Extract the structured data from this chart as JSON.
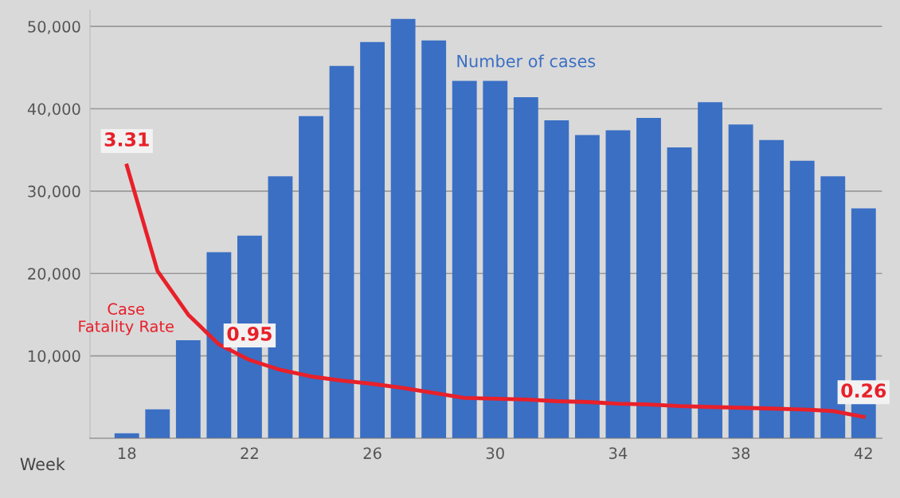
{
  "chart_data": {
    "type": "bar",
    "xlabel": "Week",
    "x": [
      18,
      19,
      20,
      21,
      22,
      23,
      24,
      25,
      26,
      27,
      28,
      29,
      30,
      31,
      32,
      33,
      34,
      35,
      36,
      37,
      38,
      39,
      40,
      41,
      42
    ],
    "series": [
      {
        "name": "Number of cases",
        "color": "#3a6fc4",
        "values": [
          600,
          3500,
          11900,
          22600,
          24600,
          31800,
          39100,
          45200,
          48100,
          50900,
          48300,
          43400,
          43400,
          41400,
          38600,
          36800,
          37400,
          38900,
          35300,
          40800,
          38100,
          36200,
          33700,
          31800,
          27900
        ]
      },
      {
        "name": "Case Fatality Rate",
        "type": "line",
        "axis": "y2",
        "color": "#e8202a",
        "values": [
          3.31,
          2.03,
          1.5,
          1.14,
          0.95,
          0.83,
          0.75,
          0.7,
          0.66,
          0.61,
          0.55,
          0.49,
          0.48,
          0.47,
          0.45,
          0.44,
          0.42,
          0.41,
          0.39,
          0.38,
          0.37,
          0.36,
          0.35,
          0.33,
          0.26
        ],
        "value_labels": [
          "3.31",
          null,
          null,
          null,
          "0.95",
          null,
          null,
          null,
          null,
          null,
          null,
          null,
          null,
          null,
          null,
          null,
          null,
          null,
          null,
          null,
          null,
          null,
          null,
          null,
          "0.26"
        ]
      }
    ],
    "xlim": [
      16.8,
      42.6
    ],
    "xticks": [
      18,
      22,
      26,
      30,
      34,
      38,
      42
    ],
    "ylim": [
      0,
      52000
    ],
    "yticks": [
      {
        "value": 10000,
        "label": "10,000"
      },
      {
        "value": 20000,
        "label": "20,000"
      },
      {
        "value": 30000,
        "label": "30,000"
      },
      {
        "value": 40000,
        "label": "40,000"
      },
      {
        "value": 50000,
        "label": "50,000"
      }
    ],
    "y2lim": [
      0,
      5.2
    ],
    "grid": "y",
    "legend": false,
    "marker": "none",
    "line_style": "solid"
  }
}
